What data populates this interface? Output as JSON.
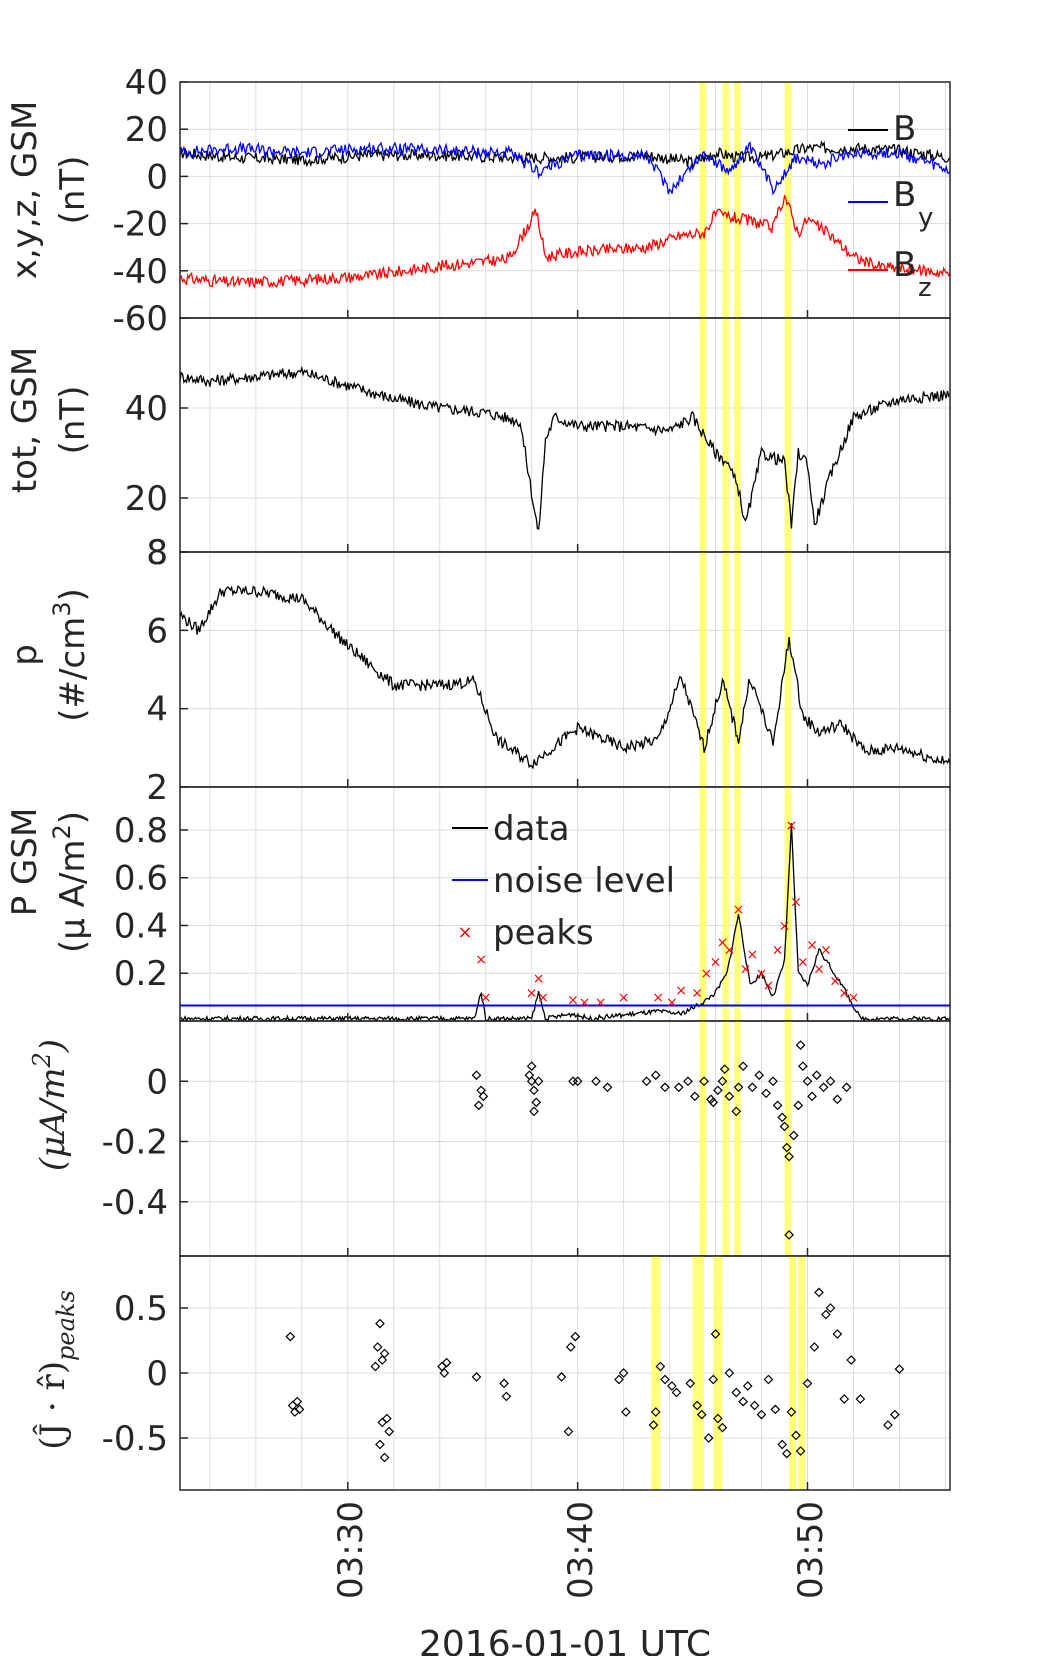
{
  "figure": {
    "xlabel": "2016-01-01 UTC",
    "xticks": [
      "03:30",
      "03:40",
      "03:50"
    ],
    "x_range_min": [
      22.7,
      56.2
    ],
    "yellow_bands_panels_1_5_min": [
      [
        45.3,
        45.6
      ],
      [
        46.3,
        46.6
      ],
      [
        46.8,
        47.1
      ],
      [
        49.0,
        49.3
      ]
    ],
    "yellow_bands_panel_6_min": [
      [
        43.2,
        43.6
      ],
      [
        45.0,
        45.5
      ],
      [
        45.9,
        46.3
      ],
      [
        49.2,
        49.5
      ],
      [
        49.6,
        49.9
      ]
    ],
    "colors": {
      "axes": "#262626",
      "grid": "#dcdcdc",
      "black": "#000000",
      "blue": "#0000ff",
      "red": "#ff0000",
      "yellow": "#ffff66"
    }
  },
  "panels": [
    {
      "id": "b-xyz",
      "ylabel1": "x,y,z, GSM",
      "ylabel2": "(nT)",
      "ylim": [
        -60,
        40
      ],
      "yticks": [
        "40",
        "20",
        "0",
        "-20",
        "-40",
        "-60"
      ],
      "ytick_values": [
        40,
        20,
        0,
        -20,
        -40,
        -60
      ]
    },
    {
      "id": "b-tot",
      "ylabel1": "tot, GSM",
      "ylabel2": "(nT)",
      "ylim": [
        8,
        60
      ],
      "yticks": [
        "40",
        "20",
        "8"
      ],
      "ytick_values": [
        40,
        20,
        8
      ]
    },
    {
      "id": "density",
      "ylabel1": "p",
      "ylabel2": "(#/cm",
      "ylabel2_sup": "3",
      "ylabel2_tail": ")",
      "ylim": [
        2,
        8
      ],
      "yticks": [
        "8",
        "6",
        "4",
        "2"
      ],
      "ytick_values": [
        8,
        6,
        4,
        2
      ]
    },
    {
      "id": "current",
      "ylabel1": "P GSM",
      "ylabel2": "(μ A/m",
      "ylabel2_sup": "2",
      "ylabel2_tail": ")",
      "ylim": [
        0,
        0.98
      ],
      "yticks": [
        "0.8",
        "0.6",
        "0.4",
        "0.2"
      ],
      "ytick_values": [
        0.8,
        0.6,
        0.4,
        0.2
      ]
    },
    {
      "id": "jpar",
      "ylabel2": "(μA/m",
      "ylabel2_sup": "2",
      "ylabel2_tail": ")",
      "ylim": [
        -0.58,
        0.2
      ],
      "yticks": [
        "0",
        "-0.2",
        "-0.4"
      ],
      "ytick_values": [
        0,
        -0.2,
        -0.4
      ]
    },
    {
      "id": "jdotr",
      "ylabel2": "(Ĵ · r̂)",
      "ylabel2_sub": "peaks",
      "ylim": [
        -0.9,
        0.9
      ],
      "yticks": [
        "0.5",
        "0",
        "-0.5"
      ],
      "ytick_values": [
        0.5,
        0,
        -0.5
      ]
    }
  ],
  "legend_b": [
    "B",
    "B",
    "B"
  ],
  "legend_b_sub": [
    "",
    "y",
    "z"
  ],
  "legend_j": [
    "data",
    "noise level",
    "peaks"
  ],
  "chart_data": [
    {
      "type": "line",
      "panel": "b-xyz",
      "x_units": "minutes after 03:00 UTC",
      "ylabel": "x,y,z, GSM (nT)",
      "ylim": [
        -60,
        40
      ],
      "series": [
        {
          "name": "B",
          "color": "#000000",
          "x": [
            22.7,
            25,
            28,
            31,
            34,
            37,
            40,
            43,
            45,
            46,
            47,
            48,
            49,
            50,
            52,
            54,
            56.2
          ],
          "y": [
            10,
            8,
            7,
            9,
            9,
            8,
            8,
            9,
            6,
            10,
            8,
            8,
            10,
            12,
            12,
            11,
            8
          ]
        },
        {
          "name": "B y",
          "color": "#0000ff",
          "x": [
            22.7,
            25,
            28,
            31,
            34,
            37,
            38.3,
            40,
            43,
            44,
            45.5,
            46.5,
            47.5,
            48.5,
            49.5,
            50.5,
            52,
            54,
            56.2
          ],
          "y": [
            10,
            12,
            10,
            12,
            11,
            10,
            2,
            9,
            9,
            -6,
            10,
            2,
            12,
            -5,
            8,
            5,
            10,
            10,
            2
          ]
        },
        {
          "name": "B z",
          "color": "#ff0000",
          "x": [
            22.7,
            25,
            28,
            31,
            34,
            37,
            38.2,
            38.6,
            40,
            43,
            44.5,
            45.5,
            46,
            47,
            48,
            48.5,
            49,
            49.6,
            50,
            51,
            52,
            53,
            54,
            56.2
          ],
          "y": [
            -43,
            -45,
            -44,
            -42,
            -38,
            -35,
            -15,
            -34,
            -32,
            -30,
            -25,
            -24,
            -16,
            -18,
            -20,
            -22,
            -8,
            -24,
            -18,
            -25,
            -34,
            -38,
            -39,
            -41
          ]
        }
      ]
    },
    {
      "type": "line",
      "panel": "b-tot",
      "x_units": "minutes after 03:00 UTC",
      "ylabel": "tot, GSM (nT)",
      "ylim": [
        8,
        60
      ],
      "series": [
        {
          "name": "B tot",
          "color": "#000000",
          "x": [
            22.7,
            24,
            26,
            28,
            30,
            32,
            34,
            36,
            37.5,
            38.1,
            38.3,
            38.6,
            39,
            40,
            42,
            44,
            45,
            46,
            46.5,
            47,
            47.3,
            48,
            49,
            49.3,
            49.6,
            50,
            50.3,
            51,
            52,
            53,
            54,
            56.2
          ],
          "y": [
            47,
            46,
            47,
            48,
            45,
            42,
            40,
            39,
            37,
            18,
            12,
            33,
            38,
            36,
            36,
            35,
            38,
            30,
            28,
            22,
            14,
            30,
            28,
            14,
            30,
            28,
            14,
            25,
            38,
            40,
            42,
            43
          ]
        }
      ]
    },
    {
      "type": "line",
      "panel": "density",
      "x_units": "minutes after 03:00 UTC",
      "ylabel": "p (#/cm3)",
      "ylim": [
        2,
        8
      ],
      "series": [
        {
          "name": "p",
          "color": "#000000",
          "x": [
            22.7,
            23.5,
            24.5,
            26,
            28,
            30,
            32,
            34,
            35.5,
            36.5,
            38,
            40,
            42,
            43.5,
            44.5,
            45.5,
            46.3,
            47,
            47.5,
            48.5,
            49.2,
            49.8,
            50.5,
            51.5,
            52.5,
            54,
            56.2
          ],
          "y": [
            6.4,
            6.0,
            7.0,
            7.0,
            6.8,
            5.6,
            4.6,
            4.6,
            4.7,
            3.2,
            2.6,
            3.5,
            3.0,
            3.2,
            4.8,
            3.0,
            4.7,
            3.2,
            4.8,
            3.1,
            5.8,
            3.8,
            3.4,
            3.6,
            2.9,
            3.0,
            2.6
          ]
        }
      ]
    },
    {
      "type": "line",
      "panel": "current",
      "x_units": "minutes after 03:00 UTC",
      "ylabel": "P GSM (μ A/m2)",
      "ylim": [
        0,
        0.98
      ],
      "series": [
        {
          "name": "data",
          "color": "#000000",
          "x": [
            22.7,
            35.5,
            35.8,
            36,
            38,
            38.3,
            38.6,
            39.8,
            40.5,
            43.5,
            44.5,
            45.5,
            46,
            46.5,
            47,
            47.5,
            48,
            48.5,
            49,
            49.3,
            49.6,
            50,
            50.5,
            51.5,
            52.3,
            56.2
          ],
          "y": [
            0.01,
            0.01,
            0.12,
            0.01,
            0.01,
            0.12,
            0.01,
            0.03,
            0.01,
            0.04,
            0.03,
            0.08,
            0.12,
            0.2,
            0.45,
            0.15,
            0.2,
            0.1,
            0.25,
            0.82,
            0.2,
            0.15,
            0.3,
            0.15,
            0.01,
            0.01
          ]
        },
        {
          "name": "noise level",
          "color": "#0000ff",
          "x": [
            22.7,
            56.2
          ],
          "y": [
            0.065,
            0.065
          ]
        },
        {
          "name": "peaks",
          "color": "#ff0000",
          "x": [
            35.8,
            36,
            38,
            38.3,
            38.5,
            39.8,
            40.3,
            41,
            42,
            43.5,
            44.1,
            44.5,
            45.2,
            45.6,
            46,
            46.3,
            46.6,
            47,
            47.3,
            47.6,
            48,
            48.3,
            48.7,
            49,
            49.3,
            49.5,
            49.8,
            50.2,
            50.5,
            50.8,
            51.2,
            51.6,
            52
          ],
          "y": [
            0.26,
            0.1,
            0.12,
            0.18,
            0.1,
            0.09,
            0.08,
            0.08,
            0.1,
            0.1,
            0.08,
            0.13,
            0.12,
            0.2,
            0.25,
            0.33,
            0.3,
            0.47,
            0.22,
            0.28,
            0.2,
            0.15,
            0.3,
            0.4,
            0.82,
            0.5,
            0.25,
            0.32,
            0.22,
            0.3,
            0.17,
            0.12,
            0.1
          ]
        }
      ]
    },
    {
      "type": "scatter",
      "panel": "jpar",
      "x_units": "minutes after 03:00 UTC",
      "ylabel": "(μA/m2)",
      "ylim": [
        -0.58,
        0.2
      ],
      "series": [
        {
          "name": "",
          "color": "#000000",
          "x": [
            35.6,
            35.8,
            35.9,
            35.7,
            37.9,
            38.0,
            38.1,
            38.2,
            38.3,
            38.1,
            38.0,
            39.8,
            40.0,
            40.8,
            41.3,
            43.0,
            43.4,
            43.8,
            44.4,
            44.8,
            45.1,
            45.5,
            45.8,
            46.1,
            46.3,
            46.6,
            46.9,
            47.2,
            47.6,
            47.9,
            48.2,
            48.5,
            48.7,
            48.9,
            49.0,
            49.1,
            49.2,
            49.4,
            49.6,
            49.8,
            50.0,
            50.2,
            50.4,
            50.7,
            51.0,
            51.3,
            51.7,
            49.2,
            49.7,
            47.0,
            46.4,
            45.9
          ],
          "y": [
            0.02,
            -0.03,
            -0.05,
            -0.08,
            0.02,
            0.05,
            -0.03,
            -0.07,
            0.0,
            -0.1,
            0.0,
            0.0,
            0.0,
            0.0,
            -0.02,
            0.0,
            0.02,
            -0.02,
            -0.02,
            0.0,
            -0.05,
            0.0,
            -0.06,
            -0.03,
            0.0,
            -0.05,
            -0.1,
            0.05,
            -0.02,
            0.02,
            -0.04,
            0.0,
            -0.08,
            -0.12,
            -0.15,
            -0.22,
            -0.25,
            -0.18,
            -0.08,
            0.05,
            0.0,
            -0.05,
            0.02,
            -0.02,
            0.0,
            -0.06,
            -0.02,
            -0.51,
            0.12,
            -0.02,
            0.04,
            -0.07
          ]
        }
      ]
    },
    {
      "type": "scatter",
      "panel": "jdotr",
      "x_units": "minutes after 03:00 UTC",
      "ylabel": "(Ĵ · r̂)peaks",
      "ylim": [
        -0.9,
        0.9
      ],
      "series": [
        {
          "name": "",
          "color": "#000000",
          "x": [
            27.5,
            27.6,
            27.7,
            27.8,
            27.9,
            31.2,
            31.3,
            31.4,
            31.5,
            31.6,
            31.7,
            31.8,
            31.4,
            31.6,
            31.5,
            34.1,
            34.2,
            34.3,
            35.6,
            36.8,
            36.9,
            39.3,
            39.7,
            39.9,
            39.6,
            41.8,
            42.0,
            42.1,
            43.3,
            43.4,
            43.6,
            43.8,
            44.1,
            44.3,
            44.9,
            45.2,
            45.4,
            45.7,
            45.9,
            46.0,
            46.1,
            46.3,
            46.6,
            46.9,
            47.2,
            47.4,
            47.7,
            48.0,
            48.3,
            48.6,
            48.9,
            49.1,
            49.3,
            49.5,
            49.7,
            50.0,
            50.3,
            50.5,
            50.8,
            51.0,
            51.3,
            51.6,
            51.9,
            52.3,
            53.5,
            53.8,
            54.0
          ],
          "y": [
            0.28,
            -0.25,
            -0.3,
            -0.22,
            -0.28,
            0.05,
            0.2,
            0.38,
            0.1,
            0.15,
            -0.35,
            -0.45,
            -0.55,
            -0.65,
            -0.38,
            0.05,
            0.0,
            0.08,
            -0.03,
            -0.08,
            -0.18,
            -0.03,
            0.2,
            0.28,
            -0.45,
            -0.05,
            0.0,
            -0.3,
            -0.4,
            -0.3,
            0.05,
            -0.05,
            -0.1,
            -0.15,
            -0.08,
            -0.25,
            -0.32,
            -0.5,
            -0.05,
            0.3,
            -0.35,
            -0.42,
            0.0,
            -0.15,
            -0.22,
            -0.1,
            -0.25,
            -0.32,
            -0.05,
            -0.28,
            -0.55,
            -0.62,
            -0.3,
            -0.48,
            -0.6,
            -0.08,
            0.2,
            0.62,
            0.45,
            0.5,
            0.3,
            -0.2,
            0.1,
            -0.2,
            -0.4,
            -0.32,
            0.03
          ]
        }
      ]
    }
  ]
}
